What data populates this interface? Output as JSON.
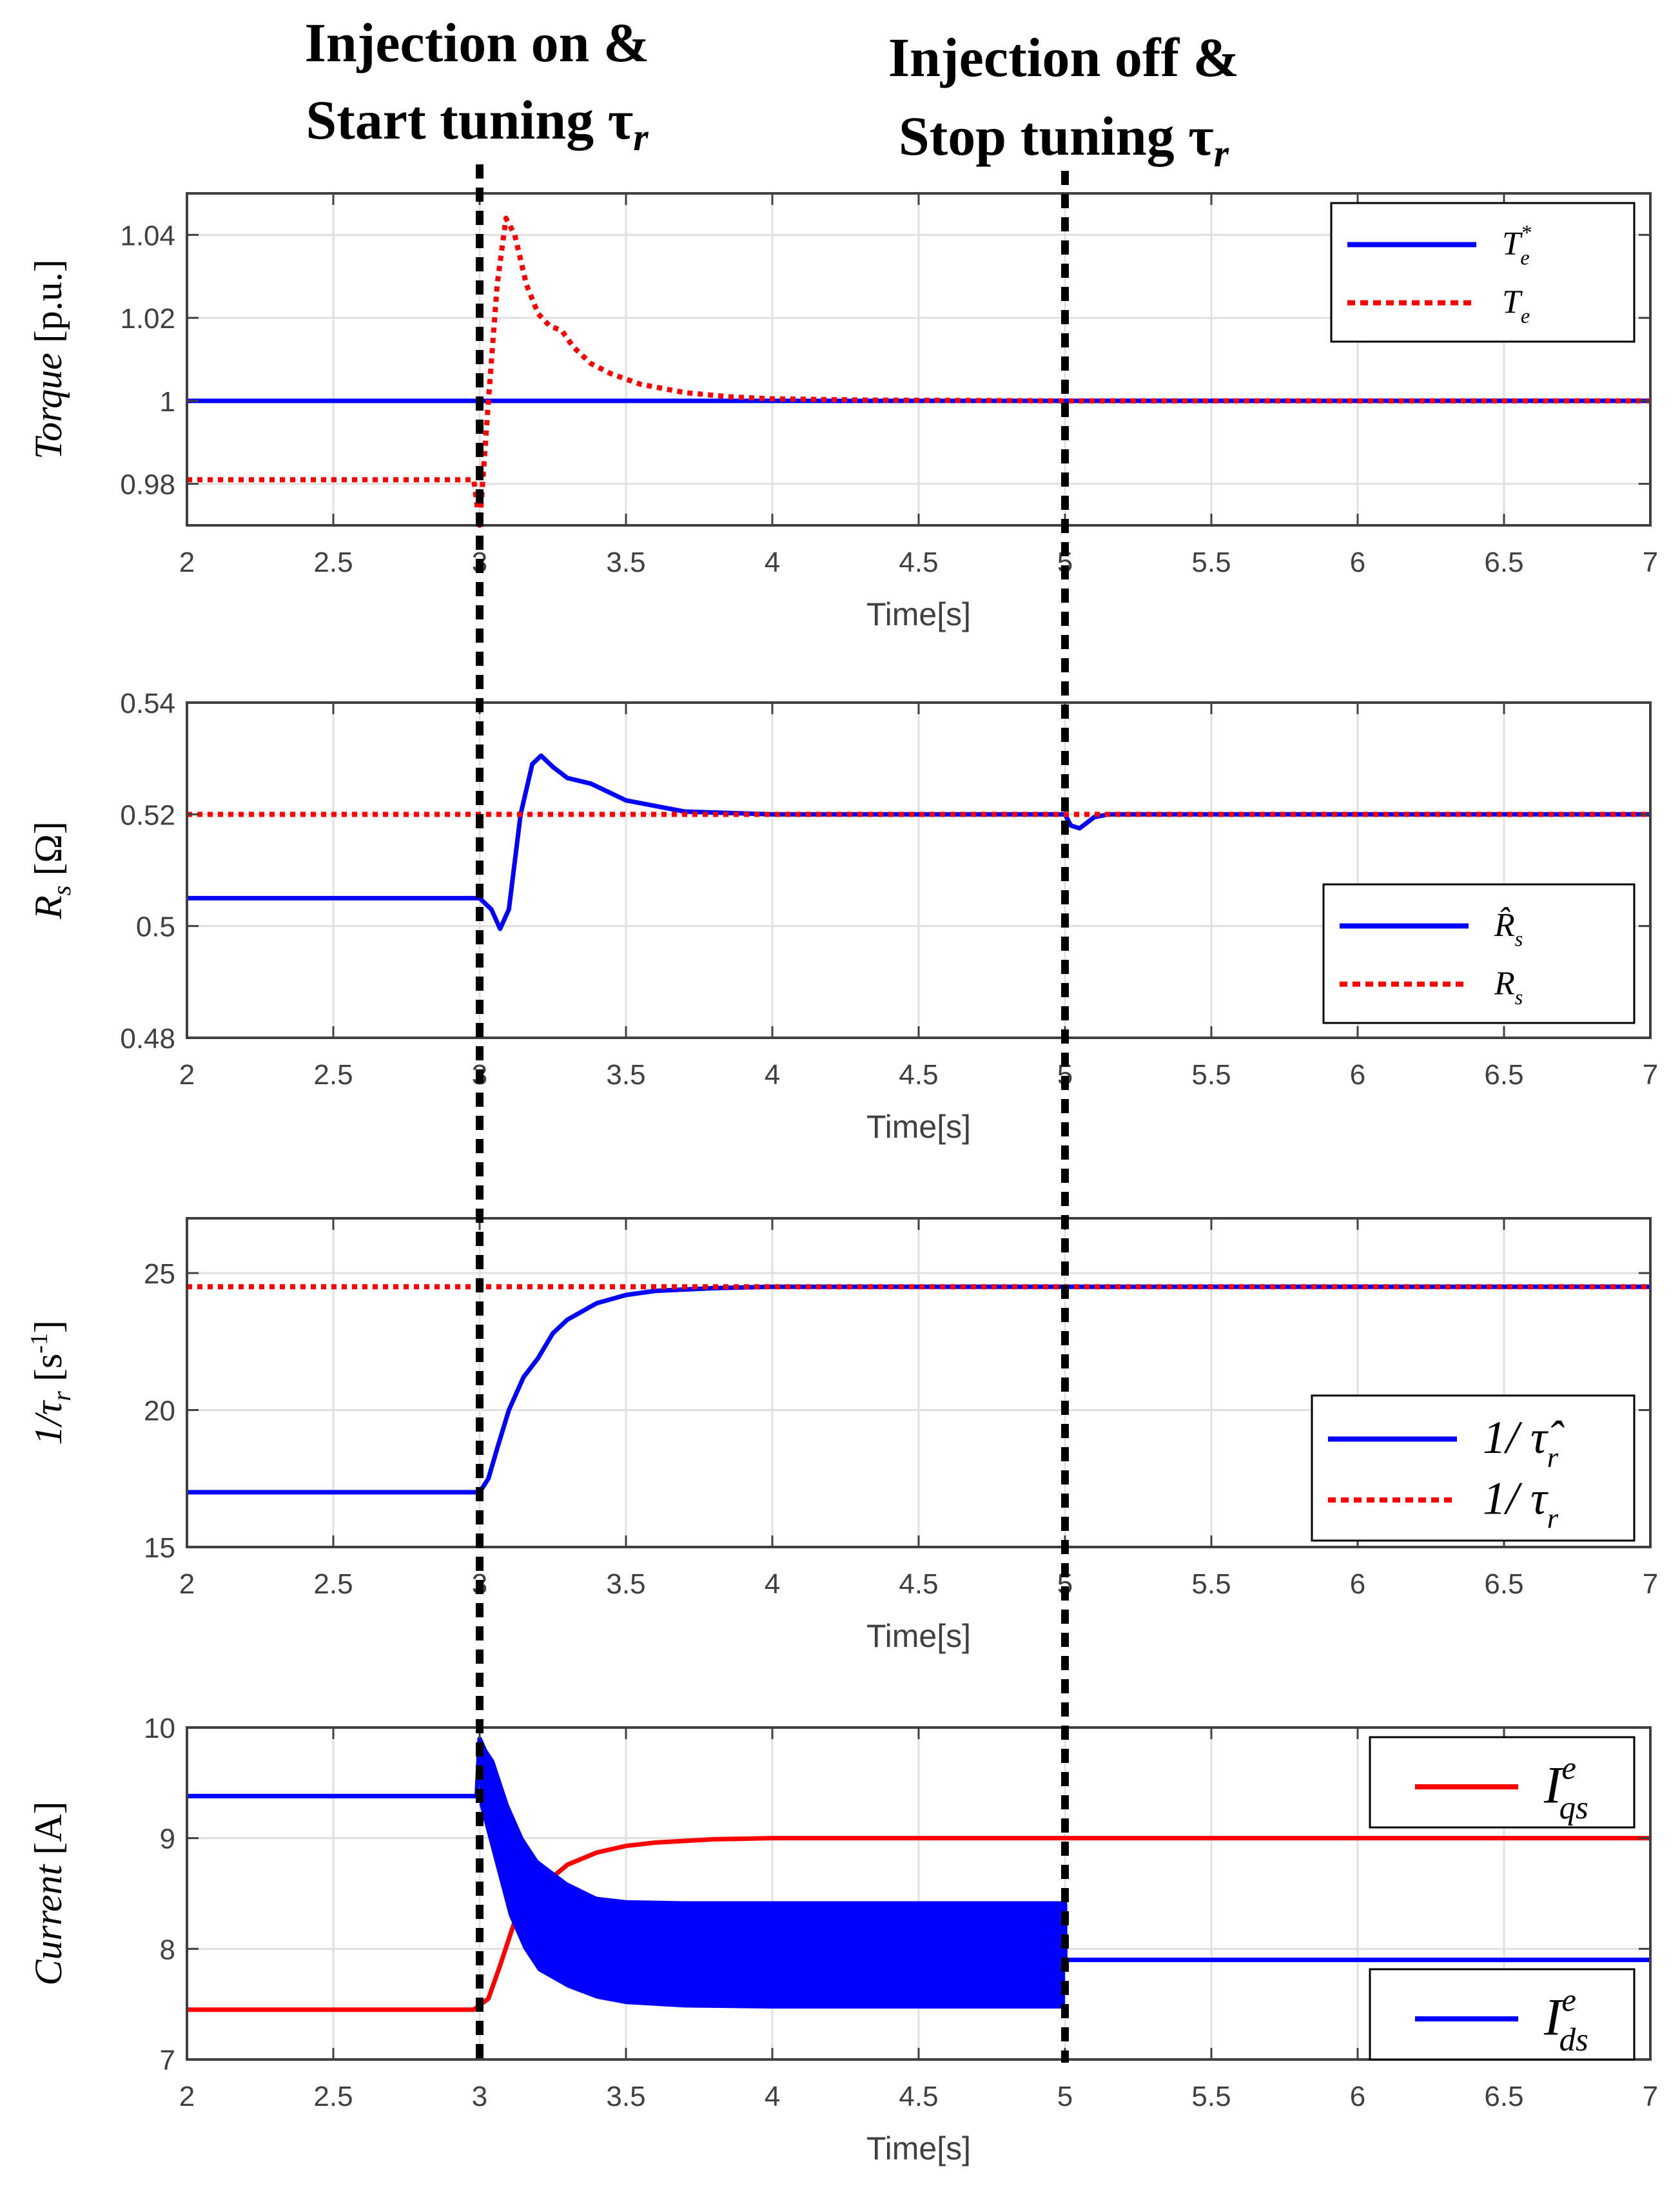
{
  "annotations": {
    "left": {
      "line1": "Injection on &",
      "line2": "Start tuning τ",
      "sub": "r"
    },
    "right": {
      "line1": "Injection off &",
      "line2": "Stop tuning τ",
      "sub": "r"
    }
  },
  "colors": {
    "blue": "#0000ff",
    "red": "#ff0000",
    "grid": "#e0e0e0",
    "axis": "#404040"
  },
  "chart_data": [
    {
      "type": "line",
      "ylabel": "Torque [p.u.]",
      "ylabel_main": "Torque",
      "ylabel_unit": " [p.u.]",
      "xlabel": "Time[s]",
      "xlim": [
        2,
        7
      ],
      "ylim": [
        0.97,
        1.05
      ],
      "xticks": [
        "2",
        "2.5",
        "3",
        "3.5",
        "4",
        "4.5",
        "5",
        "5.5",
        "6",
        "6.5",
        "7"
      ],
      "yticks": [
        "0.98",
        "1",
        "1.02",
        "1.04"
      ],
      "ytick_values": [
        0.98,
        1.0,
        1.02,
        1.04
      ],
      "legend": [
        {
          "base": "T",
          "sub": "e",
          "sup": "*",
          "style": "solid",
          "color": "blue"
        },
        {
          "base": "T",
          "sub": "e",
          "sup": "",
          "style": "dotted",
          "color": "red"
        }
      ],
      "series": [
        {
          "name": "Te*",
          "color": "blue",
          "style": "solid",
          "x": [
            2,
            7
          ],
          "y": [
            1.0,
            1.0
          ]
        },
        {
          "name": "Te",
          "color": "red",
          "style": "dotted",
          "x": [
            2,
            2.98,
            3.0,
            3.03,
            3.06,
            3.09,
            3.12,
            3.16,
            3.2,
            3.24,
            3.28,
            3.32,
            3.38,
            3.45,
            3.55,
            3.7,
            3.85,
            4.0,
            4.3,
            5.0,
            7.0
          ],
          "y": [
            0.981,
            0.981,
            0.97,
            1.0,
            1.028,
            1.044,
            1.04,
            1.028,
            1.021,
            1.018,
            1.017,
            1.013,
            1.009,
            1.0065,
            1.004,
            1.002,
            1.001,
            1.0005,
            1.0002,
            1.0,
            1.0
          ]
        }
      ]
    },
    {
      "type": "line",
      "ylabel": "Rs [Ω]",
      "ylabel_main": "R",
      "ylabel_sub": "s",
      "ylabel_unit": " [Ω]",
      "xlabel": "Time[s]",
      "xlim": [
        2,
        7
      ],
      "ylim": [
        0.48,
        0.54
      ],
      "xticks": [
        "2",
        "2.5",
        "3",
        "3.5",
        "4",
        "4.5",
        "5",
        "5.5",
        "6",
        "6.5",
        "7"
      ],
      "yticks": [
        "0.48",
        "0.5",
        "0.52",
        "0.54"
      ],
      "ytick_values": [
        0.48,
        0.5,
        0.52,
        0.54
      ],
      "legend": [
        {
          "base": "R̂",
          "sub": "s",
          "sup": "",
          "style": "solid",
          "color": "blue"
        },
        {
          "base": "R",
          "sub": "s",
          "sup": "",
          "style": "dotted",
          "color": "red"
        }
      ],
      "series": [
        {
          "name": "R̂s",
          "color": "blue",
          "style": "solid",
          "x": [
            2,
            3.0,
            3.04,
            3.07,
            3.1,
            3.14,
            3.18,
            3.21,
            3.25,
            3.3,
            3.38,
            3.5,
            3.7,
            4.0,
            5.0,
            5.02,
            5.05,
            5.1,
            5.15,
            7.0
          ],
          "y": [
            0.505,
            0.505,
            0.503,
            0.4995,
            0.503,
            0.52,
            0.529,
            0.5305,
            0.5285,
            0.5265,
            0.5255,
            0.5225,
            0.5205,
            0.52,
            0.52,
            0.518,
            0.5175,
            0.5195,
            0.52,
            0.52
          ]
        },
        {
          "name": "Rs",
          "color": "red",
          "style": "dotted",
          "x": [
            2,
            7
          ],
          "y": [
            0.52,
            0.52
          ]
        }
      ]
    },
    {
      "type": "line",
      "ylabel": "1/τr [s-1]",
      "ylabel_main": "1/τ",
      "ylabel_sub": "r",
      "ylabel_unit": " [s",
      "ylabel_sup": "-1",
      "ylabel_end": "]",
      "xlabel": "Time[s]",
      "xlim": [
        2,
        7
      ],
      "ylim": [
        15,
        27
      ],
      "xticks": [
        "2",
        "2.5",
        "3",
        "3.5",
        "4",
        "4.5",
        "5",
        "5.5",
        "6",
        "6.5",
        "7"
      ],
      "yticks": [
        "15",
        "20",
        "25"
      ],
      "ytick_values": [
        15,
        20,
        25
      ],
      "legend": [
        {
          "base": "1/ τ̂",
          "sub": "r",
          "sup": "",
          "style": "solid",
          "color": "blue"
        },
        {
          "base": "1/ τ",
          "sub": "r",
          "sup": "",
          "style": "dotted",
          "color": "red"
        }
      ],
      "series": [
        {
          "name": "1/τ̂r",
          "color": "blue",
          "style": "solid",
          "x": [
            2,
            3.0,
            3.03,
            3.06,
            3.1,
            3.15,
            3.2,
            3.25,
            3.3,
            3.4,
            3.5,
            3.6,
            3.8,
            4.0,
            4.3,
            5.0,
            7.0
          ],
          "y": [
            17.0,
            17.0,
            17.5,
            18.6,
            20.0,
            21.2,
            21.9,
            22.8,
            23.3,
            23.9,
            24.2,
            24.35,
            24.45,
            24.5,
            24.5,
            24.5,
            24.5
          ]
        },
        {
          "name": "1/τr",
          "color": "red",
          "style": "dotted",
          "x": [
            2,
            7
          ],
          "y": [
            24.5,
            24.5
          ]
        }
      ]
    },
    {
      "type": "line",
      "ylabel": "Current [A]",
      "ylabel_main": "Current",
      "ylabel_unit": " [A]",
      "xlabel": "Time[s]",
      "xlim": [
        2,
        7
      ],
      "ylim": [
        7,
        10
      ],
      "xticks": [
        "2",
        "2.5",
        "3",
        "3.5",
        "4",
        "4.5",
        "5",
        "5.5",
        "6",
        "6.5",
        "7"
      ],
      "yticks": [
        "7",
        "8",
        "9",
        "10"
      ],
      "ytick_values": [
        7,
        8,
        9,
        10
      ],
      "legend": [
        {
          "base": "I",
          "sub": "qs",
          "sup": "e",
          "style": "solid",
          "color": "red"
        },
        {
          "base": "I",
          "sub": "ds",
          "sup": "e",
          "style": "solid",
          "color": "blue"
        }
      ],
      "series": [
        {
          "name": "Iqs^e",
          "color": "red",
          "style": "solid",
          "x": [
            2,
            2.98,
            3.03,
            3.07,
            3.12,
            3.16,
            3.2,
            3.25,
            3.3,
            3.4,
            3.5,
            3.6,
            3.8,
            4.0,
            5.0,
            7.0
          ],
          "y": [
            7.45,
            7.45,
            7.55,
            7.85,
            8.25,
            8.5,
            8.55,
            8.65,
            8.76,
            8.87,
            8.93,
            8.96,
            8.99,
            9.0,
            9.0,
            9.0
          ]
        },
        {
          "name": "Ids^e",
          "color": "blue",
          "style": "solid",
          "x": [
            2,
            2.99,
            3.0,
            3.05,
            3.1,
            3.15,
            3.2,
            3.3,
            3.4,
            3.5,
            3.7,
            4.0,
            4.5,
            5.0,
            5.001,
            7.0
          ],
          "y": [
            9.38,
            9.38,
            9.9,
            9.6,
            9.2,
            8.9,
            8.7,
            8.55,
            8.45,
            8.42,
            8.41,
            8.41,
            8.41,
            8.41,
            7.9,
            7.9
          ],
          "band_x": [
            3.0,
            3.05,
            3.1,
            3.15,
            3.2,
            3.3,
            3.4,
            3.5,
            3.7,
            4.0,
            4.5,
            5.0
          ],
          "band_high": [
            9.9,
            9.7,
            9.3,
            9.0,
            8.8,
            8.6,
            8.47,
            8.43,
            8.41,
            8.41,
            8.41,
            8.41
          ],
          "band_low": [
            9.3,
            8.8,
            8.3,
            8.0,
            7.8,
            7.65,
            7.55,
            7.5,
            7.47,
            7.46,
            7.46,
            7.46
          ]
        }
      ]
    }
  ]
}
